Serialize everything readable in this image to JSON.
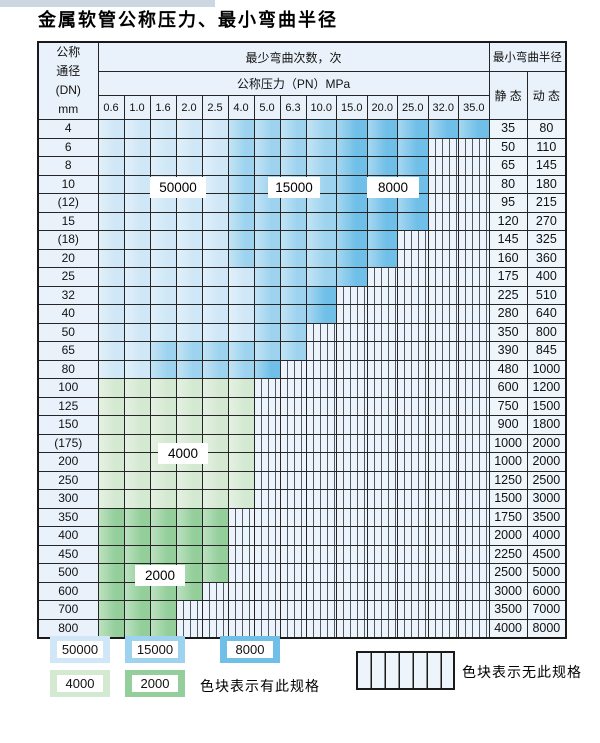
{
  "page": {
    "title": "金属软管公称压力、最小弯曲半径"
  },
  "colors": {
    "light_blue": "#cfe7f7",
    "mid_blue": "#9dd3ef",
    "dark_blue": "#6fbfe8",
    "light_green": "#d4e9d1",
    "dark_green": "#94cf9b",
    "header_bg": "#e9f2fa"
  },
  "table": {
    "dn_header_lines": [
      "公称",
      "通径",
      "(DN)",
      "mm"
    ],
    "bend_cycles_header": "最少弯曲次数，次",
    "pressure_header": "公称压力（PN）MPa",
    "radius_header": "最小弯曲半径",
    "static_label": "静 态",
    "dynamic_label": "动 态",
    "pressures": [
      "0.6",
      "1.0",
      "1.6",
      "2.0",
      "2.5",
      "4.0",
      "5.0",
      "6.3",
      "10.0",
      "15.0",
      "20.0",
      "25.0",
      "32.0",
      "35.0"
    ],
    "rows": [
      {
        "dn": "4",
        "static": "35",
        "dynamic": "80",
        "bands": [
          [
            "lb",
            5
          ],
          [
            "mb",
            4
          ],
          [
            "db",
            5
          ]
        ]
      },
      {
        "dn": "6",
        "static": "50",
        "dynamic": "110",
        "bands": [
          [
            "lb",
            5
          ],
          [
            "mb",
            4
          ],
          [
            "db",
            3
          ]
        ]
      },
      {
        "dn": "8",
        "static": "65",
        "dynamic": "145",
        "bands": [
          [
            "lb",
            5
          ],
          [
            "mb",
            4
          ],
          [
            "db",
            3
          ]
        ]
      },
      {
        "dn": "10",
        "static": "80",
        "dynamic": "180",
        "bands": [
          [
            "lb",
            5
          ],
          [
            "mb",
            4
          ],
          [
            "db",
            3
          ]
        ]
      },
      {
        "dn": "(12)",
        "static": "95",
        "dynamic": "215",
        "bands": [
          [
            "lb",
            5
          ],
          [
            "mb",
            4
          ],
          [
            "db",
            3
          ]
        ]
      },
      {
        "dn": "15",
        "static": "120",
        "dynamic": "270",
        "bands": [
          [
            "lb",
            5
          ],
          [
            "mb",
            4
          ],
          [
            "db",
            3
          ]
        ]
      },
      {
        "dn": "(18)",
        "static": "145",
        "dynamic": "325",
        "bands": [
          [
            "lb",
            5
          ],
          [
            "mb",
            4
          ],
          [
            "db",
            2
          ]
        ]
      },
      {
        "dn": "20",
        "static": "160",
        "dynamic": "360",
        "bands": [
          [
            "lb",
            5
          ],
          [
            "mb",
            4
          ],
          [
            "db",
            2
          ]
        ]
      },
      {
        "dn": "25",
        "static": "175",
        "dynamic": "400",
        "bands": [
          [
            "lb",
            6
          ],
          [
            "mb",
            3
          ],
          [
            "db",
            1
          ]
        ]
      },
      {
        "dn": "32",
        "static": "225",
        "dynamic": "510",
        "bands": [
          [
            "lb",
            6
          ],
          [
            "mb",
            2
          ],
          [
            "db",
            1
          ]
        ]
      },
      {
        "dn": "40",
        "static": "280",
        "dynamic": "640",
        "bands": [
          [
            "lb",
            6
          ],
          [
            "mb",
            2
          ],
          [
            "db",
            1
          ]
        ]
      },
      {
        "dn": "50",
        "static": "350",
        "dynamic": "800",
        "bands": [
          [
            "lb",
            6
          ],
          [
            "mb",
            2
          ]
        ]
      },
      {
        "dn": "65",
        "static": "390",
        "dynamic": "845",
        "bands": [
          [
            "lb",
            2
          ],
          [
            "mb",
            6
          ]
        ]
      },
      {
        "dn": "80",
        "static": "480",
        "dynamic": "1000",
        "bands": [
          [
            "lb",
            2
          ],
          [
            "mb",
            4
          ],
          [
            "db",
            1
          ]
        ]
      },
      {
        "dn": "100",
        "static": "600",
        "dynamic": "1200",
        "bands": [
          [
            "lg",
            6
          ]
        ]
      },
      {
        "dn": "125",
        "static": "750",
        "dynamic": "1500",
        "bands": [
          [
            "lg",
            6
          ]
        ]
      },
      {
        "dn": "150",
        "static": "900",
        "dynamic": "1800",
        "bands": [
          [
            "lg",
            6
          ]
        ]
      },
      {
        "dn": "(175)",
        "static": "1000",
        "dynamic": "2000",
        "bands": [
          [
            "lg",
            6
          ]
        ]
      },
      {
        "dn": "200",
        "static": "1000",
        "dynamic": "2000",
        "bands": [
          [
            "lg",
            6
          ]
        ]
      },
      {
        "dn": "250",
        "static": "1250",
        "dynamic": "2500",
        "bands": [
          [
            "lg",
            6
          ]
        ]
      },
      {
        "dn": "300",
        "static": "1500",
        "dynamic": "3000",
        "bands": [
          [
            "lg",
            6
          ]
        ]
      },
      {
        "dn": "350",
        "static": "1750",
        "dynamic": "3500",
        "bands": [
          [
            "dg",
            5
          ]
        ]
      },
      {
        "dn": "400",
        "static": "2000",
        "dynamic": "4000",
        "bands": [
          [
            "dg",
            5
          ]
        ]
      },
      {
        "dn": "450",
        "static": "2250",
        "dynamic": "4500",
        "bands": [
          [
            "dg",
            5
          ]
        ]
      },
      {
        "dn": "500",
        "static": "2500",
        "dynamic": "5000",
        "bands": [
          [
            "dg",
            5
          ]
        ]
      },
      {
        "dn": "600",
        "static": "3000",
        "dynamic": "6000",
        "bands": [
          [
            "dg",
            4
          ]
        ]
      },
      {
        "dn": "700",
        "static": "3500",
        "dynamic": "7000",
        "bands": [
          [
            "dg",
            3
          ]
        ]
      },
      {
        "dn": "800",
        "static": "4000",
        "dynamic": "8000",
        "bands": [
          [
            "dg",
            3
          ]
        ]
      }
    ]
  },
  "cycle_flags": [
    {
      "text": "50000"
    },
    {
      "text": "15000"
    },
    {
      "text": "8000"
    },
    {
      "text": "4000"
    },
    {
      "text": "2000"
    }
  ],
  "legend": {
    "has_spec_items": [
      {
        "value": "50000"
      },
      {
        "value": "15000"
      },
      {
        "value": "8000"
      },
      {
        "value": "4000"
      },
      {
        "value": "2000"
      }
    ],
    "has_spec_text": "色块表示有此规格",
    "no_spec_text": "色块表示无此规格"
  }
}
